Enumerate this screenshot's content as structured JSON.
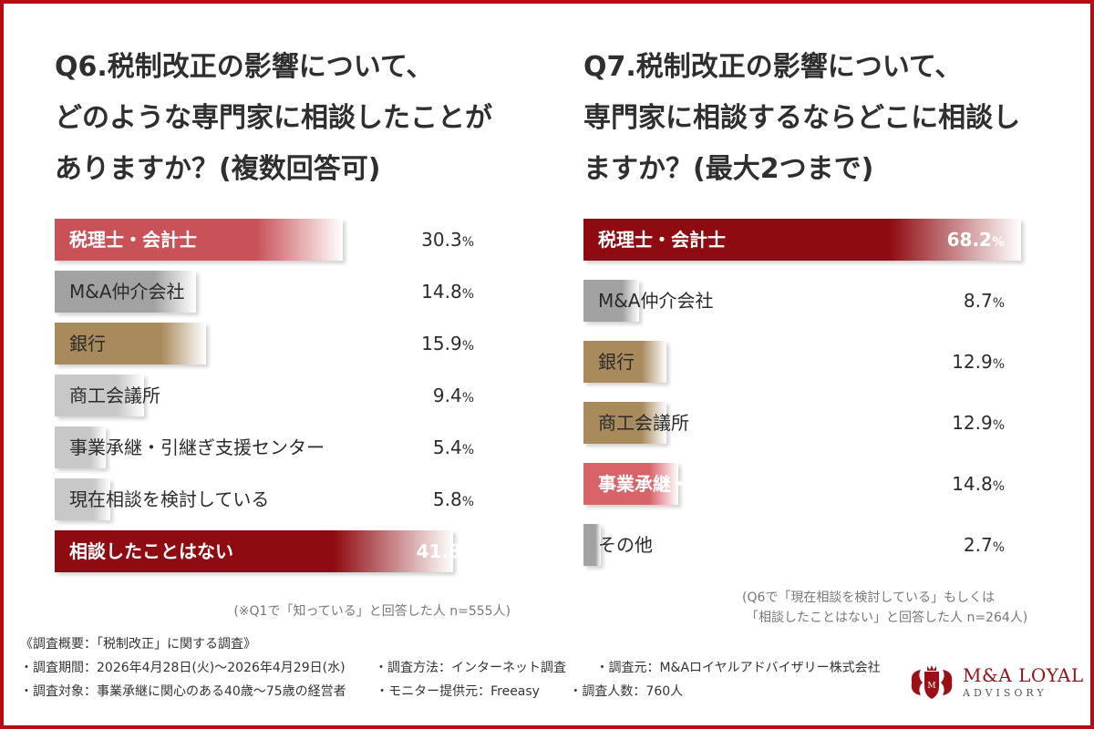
{
  "colors": {
    "border": "#b50d12",
    "red_light": "#c85258",
    "red_dark": "#8f0b12",
    "gray": "#a2a2a2",
    "gold": "#a88a5c",
    "gold_light": "#c9b498",
    "pink": "#d8646a",
    "gray_light": "#c8c8c8"
  },
  "left": {
    "title_lines": [
      "Q6.税制改正の影響について、",
      "どのような専門家に相談したことが",
      "ありますか？(複数回答可)"
    ],
    "note": "(※Q1で「知っている」と回答した人 n=555人)"
  },
  "right": {
    "title_lines": [
      "Q7.税制改正の影響について、",
      "専門家に相談するならどこに相談し",
      "ますか？(最大2つまで)"
    ],
    "note_lines": [
      "(Q6で「現在相談を検討している」もしくは",
      "「相談したことはない」と回答した人 n=264人)"
    ]
  },
  "chart_data": [
    {
      "type": "bar",
      "orientation": "horizontal",
      "unit": "%",
      "categories": [
        "税理士・会計士",
        "M&A仲介会社",
        "銀行",
        "商工会議所",
        "事業承継・引継ぎ支援センター",
        "現在相談を検討している",
        "相談したことはない"
      ],
      "values": [
        30.3,
        14.8,
        15.9,
        9.4,
        5.4,
        5.8,
        41.8
      ],
      "display": [
        "30.3",
        "14.8",
        "15.9",
        "9.4",
        "5.4",
        "5.8",
        "41.8"
      ],
      "bar_colors": [
        "red_light",
        "gray",
        "gold",
        "gray_light",
        "gray_light",
        "gray_light",
        "red_dark"
      ],
      "xlim": [
        0,
        45
      ]
    },
    {
      "type": "bar",
      "orientation": "horizontal",
      "unit": "%",
      "categories": [
        "税理士・会計士",
        "M&A仲介会社",
        "銀行",
        "商工会議所",
        "事業承継・引継ぎ支援センター",
        "その他"
      ],
      "values": [
        68.2,
        8.7,
        12.9,
        12.9,
        14.8,
        2.7
      ],
      "display": [
        "68.2",
        "8.7",
        "12.9",
        "12.9",
        "14.8",
        "2.7"
      ],
      "bar_colors": [
        "red_dark",
        "gray",
        "gold",
        "gold",
        "pink",
        "gray"
      ],
      "xlim": [
        0,
        68.2
      ]
    }
  ],
  "footer": {
    "line1": "《調査概要：「税制改正」に関する調査》",
    "line2_items": [
      "・調査期間：2026年4月28日(火)～2026年4月29日(水)",
      "・調査方法：インターネット調査",
      "・調査元：M&Aロイヤルアドバイザリー株式会社"
    ],
    "line3_items": [
      "・調査対象：事業承継に関心のある40歳～75歳の経営者",
      "・モニター提供元：Freeasy",
      "・調査人数：760人"
    ]
  },
  "logo": {
    "line1": "M&A LOYAL",
    "line2": "ADVISORY"
  }
}
